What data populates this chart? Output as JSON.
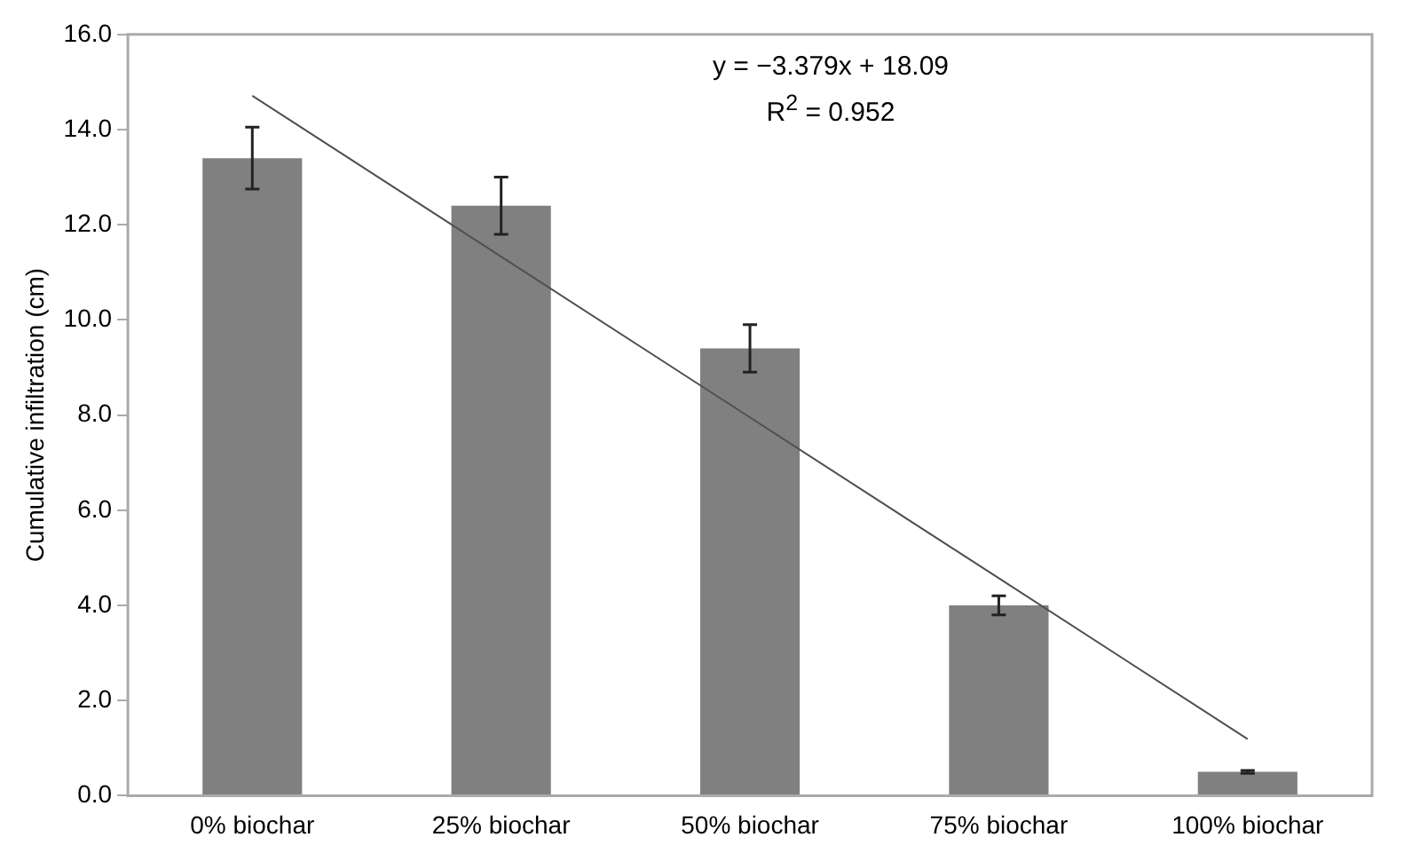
{
  "chart_data": {
    "type": "bar",
    "ylabel": "Cumulative infiltration (cm)",
    "categories": [
      "0% biochar",
      "25% biochar",
      "50% biochar",
      "75% biochar",
      "100% biochar"
    ],
    "series": [
      {
        "color": "#808080",
        "values": [
          13.4,
          12.4,
          9.4,
          4.0,
          0.5
        ],
        "errors": [
          0.65,
          0.6,
          0.5,
          0.2,
          0.03
        ]
      },
      {
        "type": "line",
        "color": "#505050",
        "values": [
          14.71,
          11.33,
          7.95,
          4.57,
          1.19
        ],
        "marker": "none"
      }
    ],
    "ylim": [
      0,
      16
    ],
    "yticks": [
      {
        "value": 0,
        "label": "0.0"
      },
      {
        "value": 2,
        "label": "2.0"
      },
      {
        "value": 4,
        "label": "4.0"
      },
      {
        "value": 6,
        "label": "6.0"
      },
      {
        "value": 8,
        "label": "8.0"
      },
      {
        "value": 10,
        "label": "10.0"
      },
      {
        "value": 12,
        "label": "12.0"
      },
      {
        "value": 14,
        "label": "14.0"
      },
      {
        "value": 16,
        "label": "16.0"
      }
    ],
    "annotations": [
      "y = −3.379x + 18.09",
      "R$^{2}$ = 0.952"
    ],
    "grid": false,
    "legend": false
  }
}
